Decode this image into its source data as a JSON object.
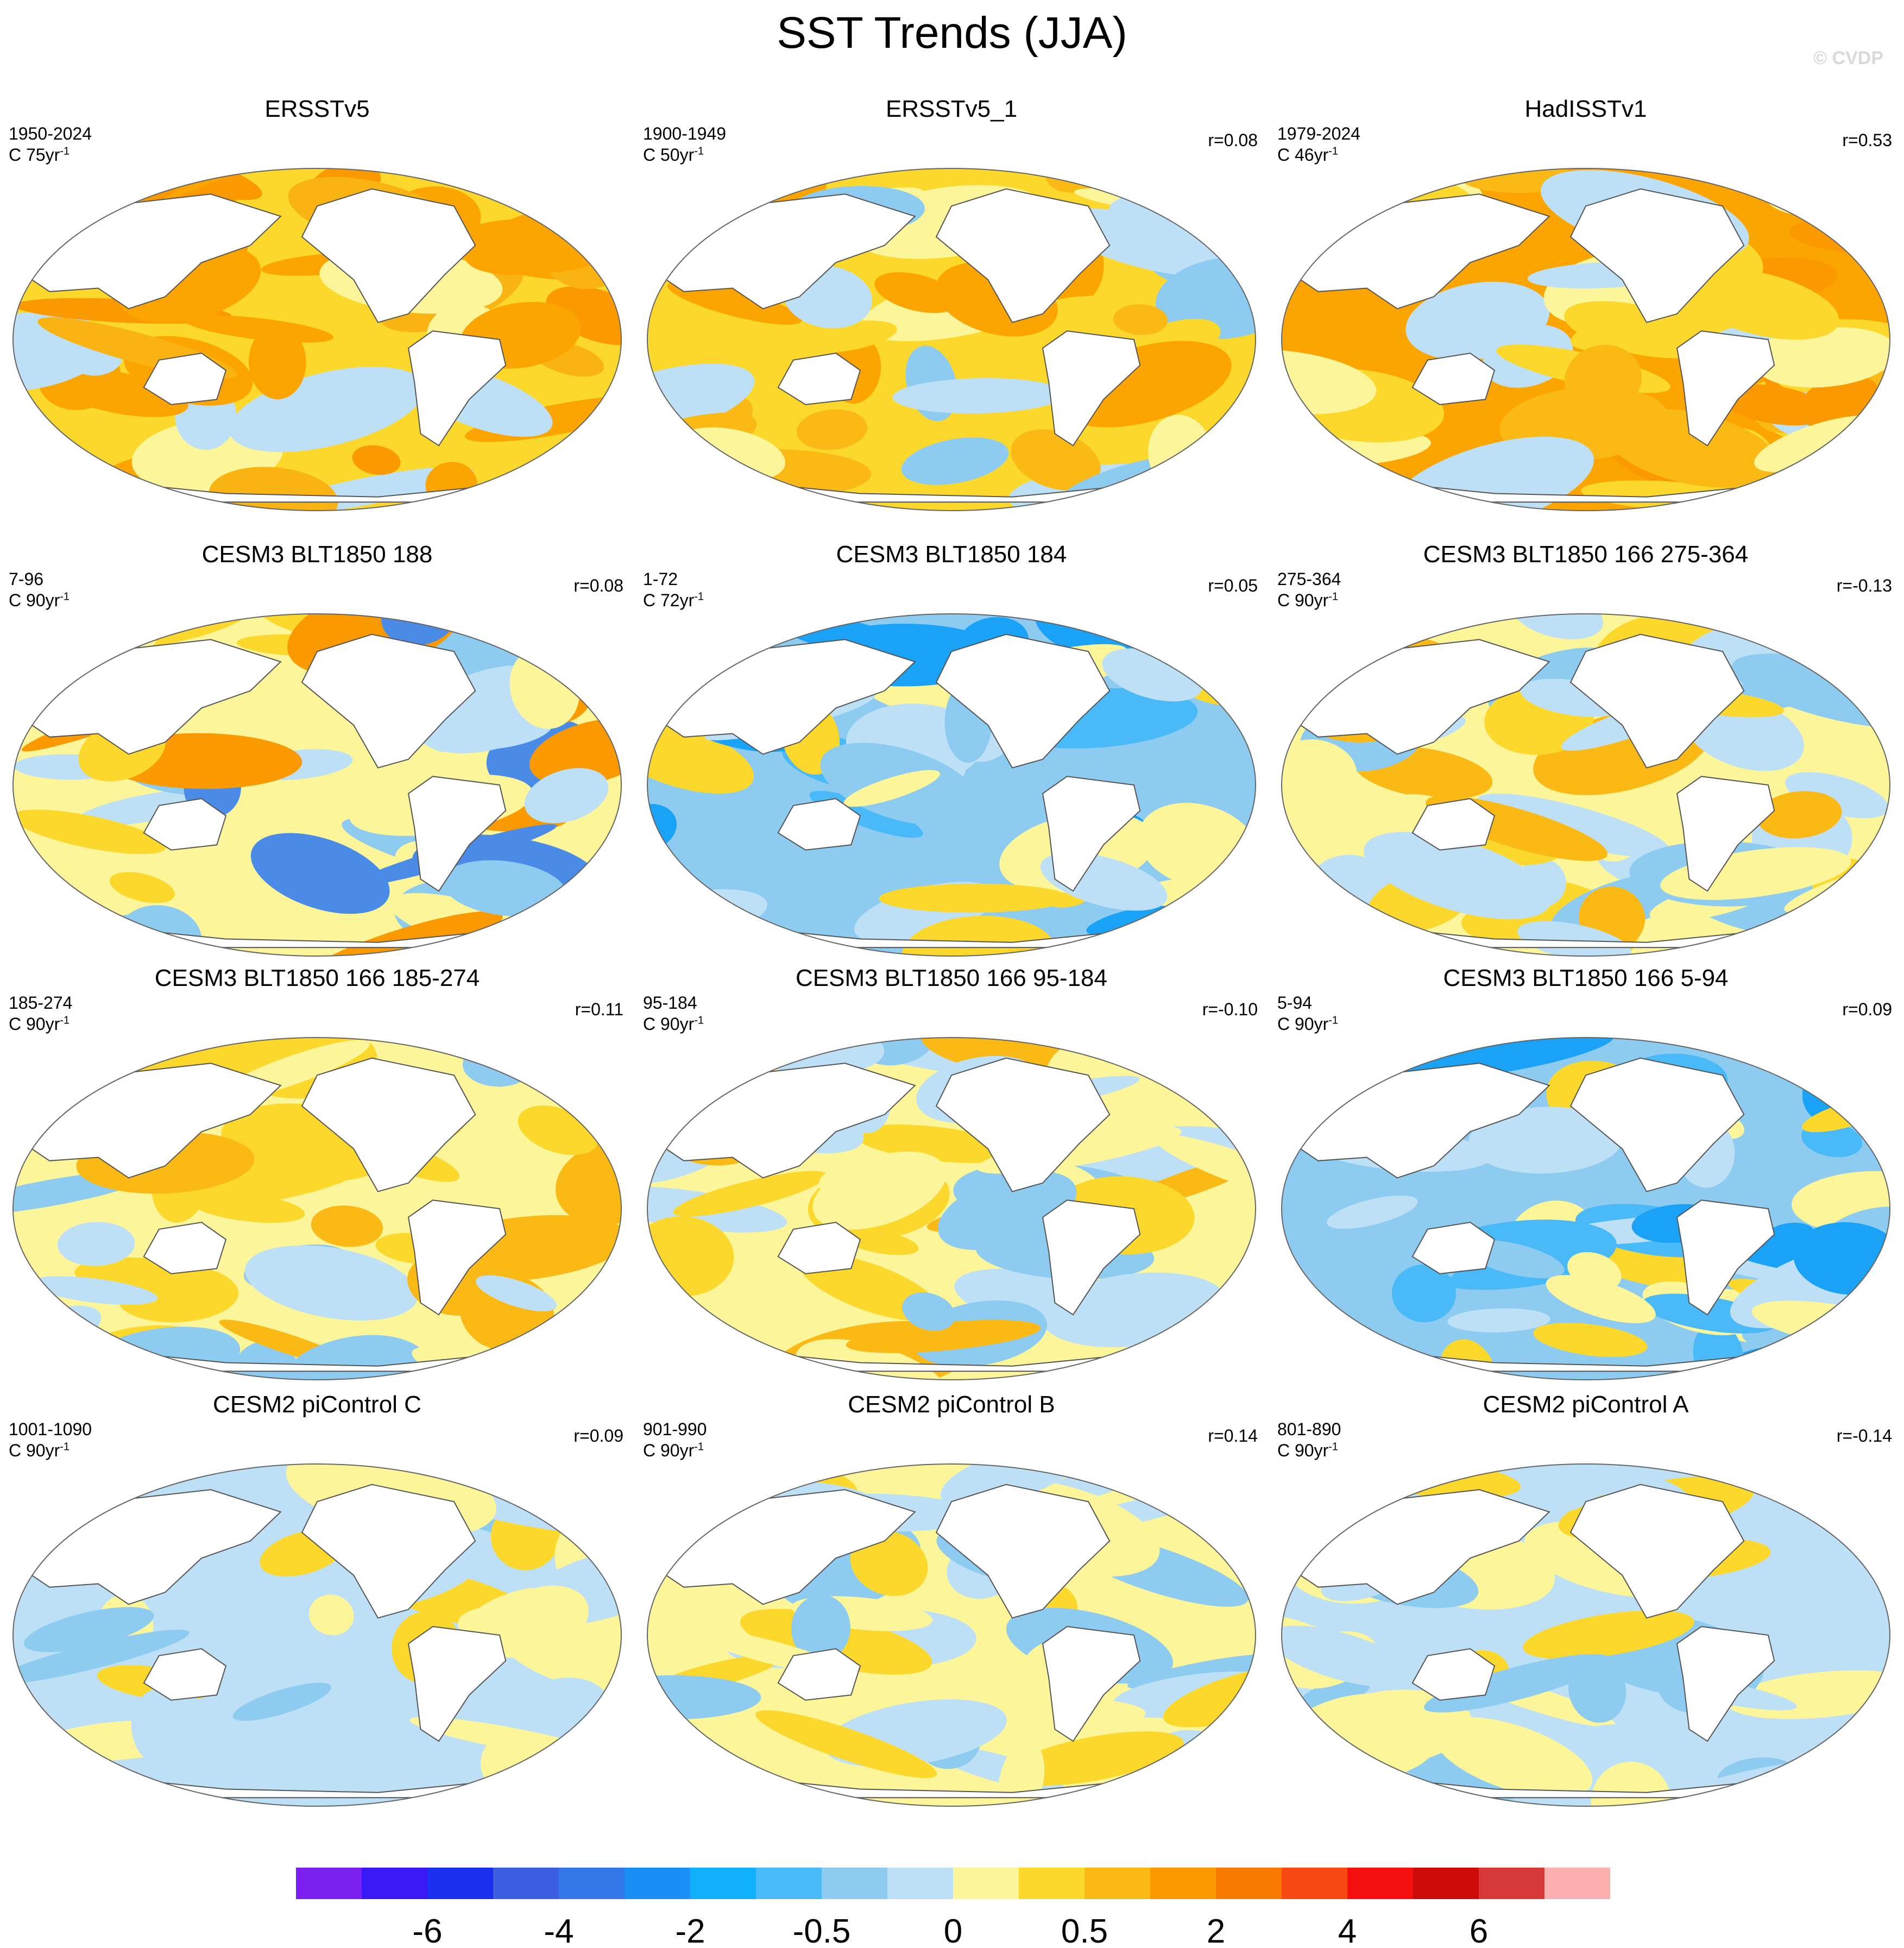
{
  "title": "SST Trends (JJA)",
  "watermark": "© CVDP",
  "panels": [
    {
      "title": "ERSSTv5",
      "period": "1950-2024",
      "units_prefix": "C ",
      "units_base": "75yr",
      "units_exp": "-1",
      "corr": "",
      "palette": [
        "#fcd82c",
        "#fca500",
        "#fa9a00",
        "#f9b414",
        "#fca500",
        "#fdf59a",
        "#bde0f6"
      ]
    },
    {
      "title": "ERSSTv5_1",
      "period": "1900-1949",
      "units_prefix": "C ",
      "units_base": "50yr",
      "units_exp": "-1",
      "corr": "r=0.08",
      "palette": [
        "#fcd82c",
        "#fbb915",
        "#fdf59a",
        "#bde0f6",
        "#fca500",
        "#8dcbf0",
        "#fcd82c"
      ]
    },
    {
      "title": "HadISSTv1",
      "period": "1979-2024",
      "units_prefix": "C ",
      "units_base": "46yr",
      "units_exp": "-1",
      "corr": "r=0.53",
      "palette": [
        "#fca500",
        "#fcd82c",
        "#fbb915",
        "#fdf59a",
        "#bde0f6",
        "#fa9a00",
        "#fcd82c"
      ]
    },
    {
      "title": "CESM3 BLT1850 188",
      "period": "7-96",
      "units_prefix": "C ",
      "units_base": "90yr",
      "units_exp": "-1",
      "corr": "r=0.08",
      "palette": [
        "#fdf59a",
        "#bde0f6",
        "#fcd82c",
        "#8dcbf0",
        "#fdf59a",
        "#4a8be8",
        "#fa9a00"
      ]
    },
    {
      "title": "CESM3 BLT1850 184",
      "period": "1-72",
      "units_prefix": "C ",
      "units_base": "72yr",
      "units_exp": "-1",
      "corr": "r=0.05",
      "palette": [
        "#8dcbf0",
        "#49baf7",
        "#bde0f6",
        "#1aa2f7",
        "#fdf59a",
        "#8dcbf0",
        "#fcd82c"
      ]
    },
    {
      "title": "CESM3 BLT1850 166 275-364",
      "period": "275-364",
      "units_prefix": "C ",
      "units_base": "90yr",
      "units_exp": "-1",
      "corr": "r=-0.13",
      "palette": [
        "#fdf59a",
        "#fcd82c",
        "#bde0f6",
        "#8dcbf0",
        "#fdf59a",
        "#fbb915",
        "#bde0f6"
      ]
    },
    {
      "title": "CESM3 BLT1850 166 185-274",
      "period": "185-274",
      "units_prefix": "C ",
      "units_base": "90yr",
      "units_exp": "-1",
      "corr": "r=0.11",
      "palette": [
        "#fdf59a",
        "#fcd82c",
        "#bde0f6",
        "#fbb915",
        "#fdf59a",
        "#8dcbf0",
        "#fcd82c"
      ]
    },
    {
      "title": "CESM3 BLT1850 166 95-184",
      "period": "95-184",
      "units_prefix": "C ",
      "units_base": "90yr",
      "units_exp": "-1",
      "corr": "r=-0.10",
      "palette": [
        "#fdf59a",
        "#bde0f6",
        "#fcd82c",
        "#8dcbf0",
        "#fdf59a",
        "#fbb915",
        "#bde0f6"
      ]
    },
    {
      "title": "CESM3 BLT1850 166 5-94",
      "period": "5-94",
      "units_prefix": "C ",
      "units_base": "90yr",
      "units_exp": "-1",
      "corr": "r=0.09",
      "palette": [
        "#8dcbf0",
        "#49baf7",
        "#bde0f6",
        "#1aa2f7",
        "#fdf59a",
        "#8dcbf0",
        "#fcd82c"
      ]
    },
    {
      "title": "CESM2 piControl C",
      "period": "1001-1090",
      "units_prefix": "C ",
      "units_base": "90yr",
      "units_exp": "-1",
      "corr": "r=0.09",
      "palette": [
        "#bde0f6",
        "#fdf59a",
        "#8dcbf0",
        "#bde0f6",
        "#fcd82c",
        "#fdf59a",
        "#bde0f6"
      ]
    },
    {
      "title": "CESM2 piControl B",
      "period": "901-990",
      "units_prefix": "C ",
      "units_base": "90yr",
      "units_exp": "-1",
      "corr": "r=0.14",
      "palette": [
        "#fdf59a",
        "#bde0f6",
        "#fcd82c",
        "#fdf59a",
        "#8dcbf0",
        "#fdf59a",
        "#bde0f6"
      ]
    },
    {
      "title": "CESM2 piControl A",
      "period": "801-890",
      "units_prefix": "C ",
      "units_base": "90yr",
      "units_exp": "-1",
      "corr": "r=-0.14",
      "palette": [
        "#bde0f6",
        "#fdf59a",
        "#8dcbf0",
        "#fdf59a",
        "#bde0f6",
        "#fcd82c",
        "#bde0f6"
      ]
    }
  ],
  "colorbar": {
    "colors": [
      "#7b1ef0",
      "#3a18f5",
      "#1a2ff0",
      "#3b5fe0",
      "#3377e8",
      "#1a8ff7",
      "#0fb0f7",
      "#49baf7",
      "#8dcbf0",
      "#bde0f6",
      "#fdf59a",
      "#fcd82c",
      "#fbb915",
      "#fa9a00",
      "#f97a00",
      "#f64a12",
      "#f50f0f",
      "#cd0b0b",
      "#d63838",
      "#fbb0b0"
    ],
    "tick_labels": [
      "-6",
      "-4",
      "-2",
      "-0.5",
      "0",
      "0.5",
      "2",
      "4",
      "6"
    ],
    "tick_boundaries": [
      2,
      4,
      6,
      8,
      10,
      12,
      14,
      16,
      18
    ]
  }
}
